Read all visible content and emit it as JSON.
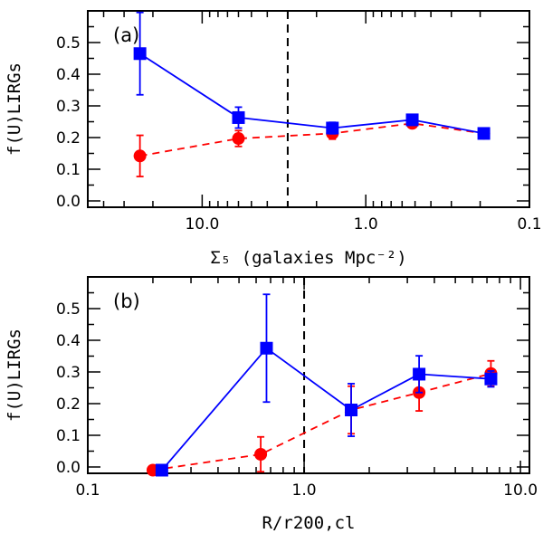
{
  "chart_data": [
    {
      "type": "scatter",
      "panel_label": "(a)",
      "xlabel": "Σ₅ (galaxies Mpc⁻²)",
      "ylabel": "f(U)LIRGs",
      "x_scale": "log",
      "x_reversed": true,
      "xlim": [
        50,
        0.1
      ],
      "ylim": [
        -0.02,
        0.6
      ],
      "x_tick_labels": [
        "10.0",
        "1.0",
        "0.1"
      ],
      "y_tick_labels": [
        "0.0",
        "0.1",
        "0.2",
        "0.3",
        "0.4",
        "0.5"
      ],
      "vline_x": 3.0,
      "series": [
        {
          "color": "#0000ff",
          "marker": "square",
          "line": "solid",
          "points": [
            {
              "x": 24,
              "y": 0.465,
              "err": 0.13
            },
            {
              "x": 6.0,
              "y": 0.263,
              "err": 0.033
            },
            {
              "x": 1.6,
              "y": 0.23,
              "err": 0.018
            },
            {
              "x": 0.52,
              "y": 0.256,
              "err": 0.012
            },
            {
              "x": 0.19,
              "y": 0.213,
              "err": 0.012
            }
          ]
        },
        {
          "color": "#ff0000",
          "marker": "circle",
          "line": "dashed",
          "points": [
            {
              "x": 24,
              "y": 0.142,
              "err": 0.065
            },
            {
              "x": 6.0,
              "y": 0.197,
              "err": 0.025
            },
            {
              "x": 1.6,
              "y": 0.213,
              "err": 0.018
            },
            {
              "x": 0.52,
              "y": 0.245,
              "err": 0.01
            },
            {
              "x": 0.19,
              "y": 0.213,
              "err": 0.01
            }
          ]
        }
      ]
    },
    {
      "type": "scatter",
      "panel_label": "(b)",
      "xlabel": "R/r200,cl",
      "ylabel": "f(U)LIRGs",
      "x_scale": "log",
      "x_reversed": false,
      "xlim": [
        0.1,
        11
      ],
      "ylim": [
        -0.02,
        0.6
      ],
      "x_tick_labels": [
        "0.1",
        "1.0",
        "10.0"
      ],
      "y_tick_labels": [
        "0.0",
        "0.1",
        "0.2",
        "0.3",
        "0.4",
        "0.5"
      ],
      "vline_x": 1.0,
      "series": [
        {
          "color": "#0000ff",
          "marker": "square",
          "line": "solid",
          "points": [
            {
              "x": 0.22,
              "y": -0.01,
              "err": 0
            },
            {
              "x": 0.67,
              "y": 0.375,
              "err": 0.17
            },
            {
              "x": 1.65,
              "y": 0.18,
              "err": 0.083
            },
            {
              "x": 3.4,
              "y": 0.293,
              "err": 0.058
            },
            {
              "x": 7.3,
              "y": 0.278,
              "err": 0.025
            }
          ]
        },
        {
          "color": "#ff0000",
          "marker": "circle",
          "line": "dashed",
          "points": [
            {
              "x": 0.2,
              "y": -0.01,
              "err": 0
            },
            {
              "x": 0.63,
              "y": 0.04,
              "err": 0.055
            },
            {
              "x": 1.65,
              "y": 0.18,
              "err": 0.075
            },
            {
              "x": 3.4,
              "y": 0.235,
              "err": 0.058
            },
            {
              "x": 7.3,
              "y": 0.295,
              "err": 0.04
            }
          ]
        }
      ]
    }
  ]
}
